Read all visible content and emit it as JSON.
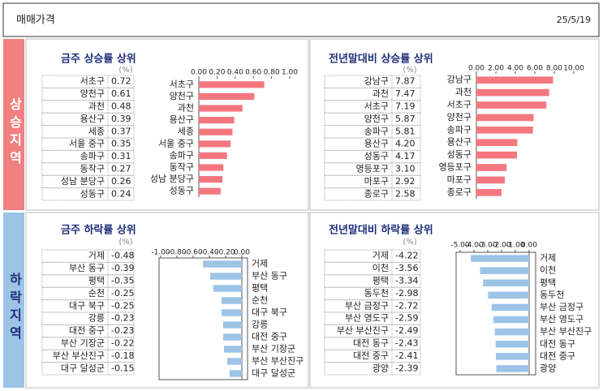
{
  "header": {
    "title": "매매가격",
    "date": "25/5/19"
  },
  "sections": [
    "상승지역",
    "하락지역"
  ],
  "chart_data": [
    {
      "type": "bar",
      "title": "금주 상승률 상위",
      "unit": "(%)",
      "categories": [
        "서초구",
        "양천구",
        "과천",
        "용산구",
        "세종",
        "서울 중구",
        "송파구",
        "동작구",
        "성남 분당구",
        "성동구"
      ],
      "values": [
        0.72,
        0.61,
        0.48,
        0.39,
        0.37,
        0.35,
        0.31,
        0.27,
        0.26,
        0.24
      ],
      "color": "#f4777f",
      "frame": false,
      "xlim": [
        0,
        1
      ],
      "xticks": [
        {
          "value": 0,
          "label": "0.00"
        },
        {
          "value": 0.2,
          "label": "0.20"
        },
        {
          "value": 0.4,
          "label": "0.40"
        },
        {
          "value": 0.6,
          "label": "0.60"
        },
        {
          "value": 0.8,
          "label": "0.80"
        },
        {
          "value": 1,
          "label": "1.00"
        }
      ]
    },
    {
      "type": "bar",
      "title": "전년말대비 상승률 상위",
      "unit": "(%)",
      "categories": [
        "강남구",
        "과천",
        "서초구",
        "양천구",
        "송파구",
        "용산구",
        "성동구",
        "영등포구",
        "마포구",
        "종로구"
      ],
      "values": [
        7.87,
        7.47,
        7.19,
        5.87,
        5.81,
        4.2,
        4.17,
        3.1,
        2.92,
        2.58
      ],
      "value_labels": [
        "7.87",
        "7.47",
        "7.19",
        "5.87",
        "5.81",
        "4.20",
        "4.17",
        "3.10",
        "2.92",
        "2.58"
      ],
      "color": "#f4777f",
      "frame": false,
      "xlim": [
        0,
        10
      ],
      "xticks": [
        {
          "value": 0,
          "label": "0.00"
        },
        {
          "value": 2,
          "label": "2.00"
        },
        {
          "value": 4,
          "label": "4.00"
        },
        {
          "value": 6,
          "label": "6.00"
        },
        {
          "value": 8,
          "label": "8.00"
        },
        {
          "value": 10,
          "label": "10.00"
        }
      ]
    },
    {
      "type": "bar",
      "title": "금주 하락률 상위",
      "unit": "(%)",
      "categories": [
        "거제",
        "부산 동구",
        "평택",
        "순천",
        "대구 북구",
        "강릉",
        "대전 중구",
        "부산 기장군",
        "부산 부산진구",
        "대구 달성군"
      ],
      "values": [
        -0.48,
        -0.39,
        -0.35,
        -0.25,
        -0.25,
        -0.23,
        -0.23,
        -0.22,
        -0.18,
        -0.15
      ],
      "color": "#9dc3e6",
      "frame": true,
      "xlim": [
        -1,
        0
      ],
      "xticks": [
        {
          "value": -1,
          "label": "-1.00"
        },
        {
          "value": -0.8,
          "label": "-0.80"
        },
        {
          "value": -0.6,
          "label": "-0.60"
        },
        {
          "value": -0.4,
          "label": "-0.40"
        },
        {
          "value": -0.2,
          "label": "-0.20"
        },
        {
          "value": 0,
          "label": "0.00"
        }
      ]
    },
    {
      "type": "bar",
      "title": "전년말대비 하락률 상위",
      "unit": "(%)",
      "categories": [
        "거제",
        "이천",
        "평택",
        "동두천",
        "부산 금정구",
        "부산 영도구",
        "부산 부산진구",
        "대전 동구",
        "대전 중구",
        "광양"
      ],
      "values": [
        -4.22,
        -3.56,
        -3.34,
        -2.98,
        -2.72,
        -2.59,
        -2.49,
        -2.43,
        -2.41,
        -2.39
      ],
      "color": "#9dc3e6",
      "frame": true,
      "xlim": [
        -5,
        0
      ],
      "xticks": [
        {
          "value": -5,
          "label": "-5.00"
        },
        {
          "value": -4,
          "label": "-4.00"
        },
        {
          "value": -3,
          "label": "-3.00"
        },
        {
          "value": -2,
          "label": "-2.00"
        },
        {
          "value": -1,
          "label": "-1.00"
        },
        {
          "value": 0,
          "label": "0.00"
        }
      ]
    }
  ]
}
